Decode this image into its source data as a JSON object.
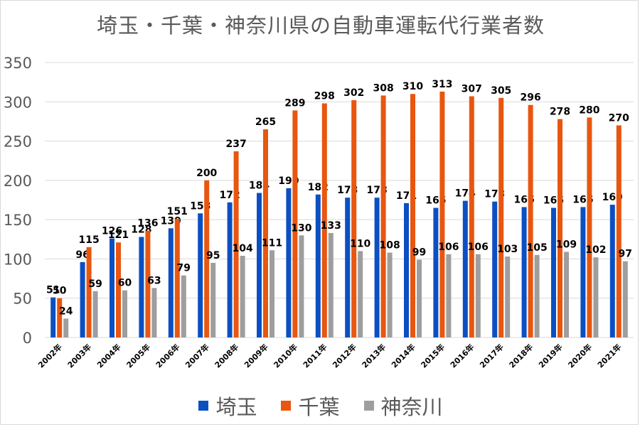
{
  "chart_data": {
    "type": "bar",
    "title": "埼玉・千葉・神奈川県の自動車運転代行業者数",
    "xlabel": "",
    "ylabel": "",
    "ylim": [
      0,
      350
    ],
    "yticks": [
      0,
      50,
      100,
      150,
      200,
      250,
      300,
      350
    ],
    "grid": true,
    "legend_position": "bottom",
    "categories": [
      "2002年",
      "2003年",
      "2004年",
      "2005年",
      "2006年",
      "2007年",
      "2008年",
      "2009年",
      "2010年",
      "2011年",
      "2012年",
      "2013年",
      "2014年",
      "2015年",
      "2016年",
      "2017年",
      "2018年",
      "2019年",
      "2020年",
      "2021年"
    ],
    "series": [
      {
        "name": "埼玉",
        "color": "#0b4fc2",
        "values": [
          51,
          96,
          126,
          128,
          139,
          158,
          172,
          184,
          190,
          182,
          178,
          178,
          171,
          165,
          174,
          173,
          166,
          165,
          166,
          169
        ]
      },
      {
        "name": "千葉",
        "color": "#e8560f",
        "values": [
          50,
          115,
          121,
          136,
          151,
          200,
          237,
          265,
          289,
          298,
          302,
          308,
          310,
          313,
          307,
          305,
          296,
          278,
          280,
          270
        ]
      },
      {
        "name": "神奈川",
        "color": "#9e9e9e",
        "values": [
          24,
          59,
          60,
          63,
          79,
          95,
          104,
          111,
          130,
          133,
          110,
          108,
          99,
          106,
          106,
          103,
          105,
          109,
          102,
          97
        ]
      }
    ]
  }
}
